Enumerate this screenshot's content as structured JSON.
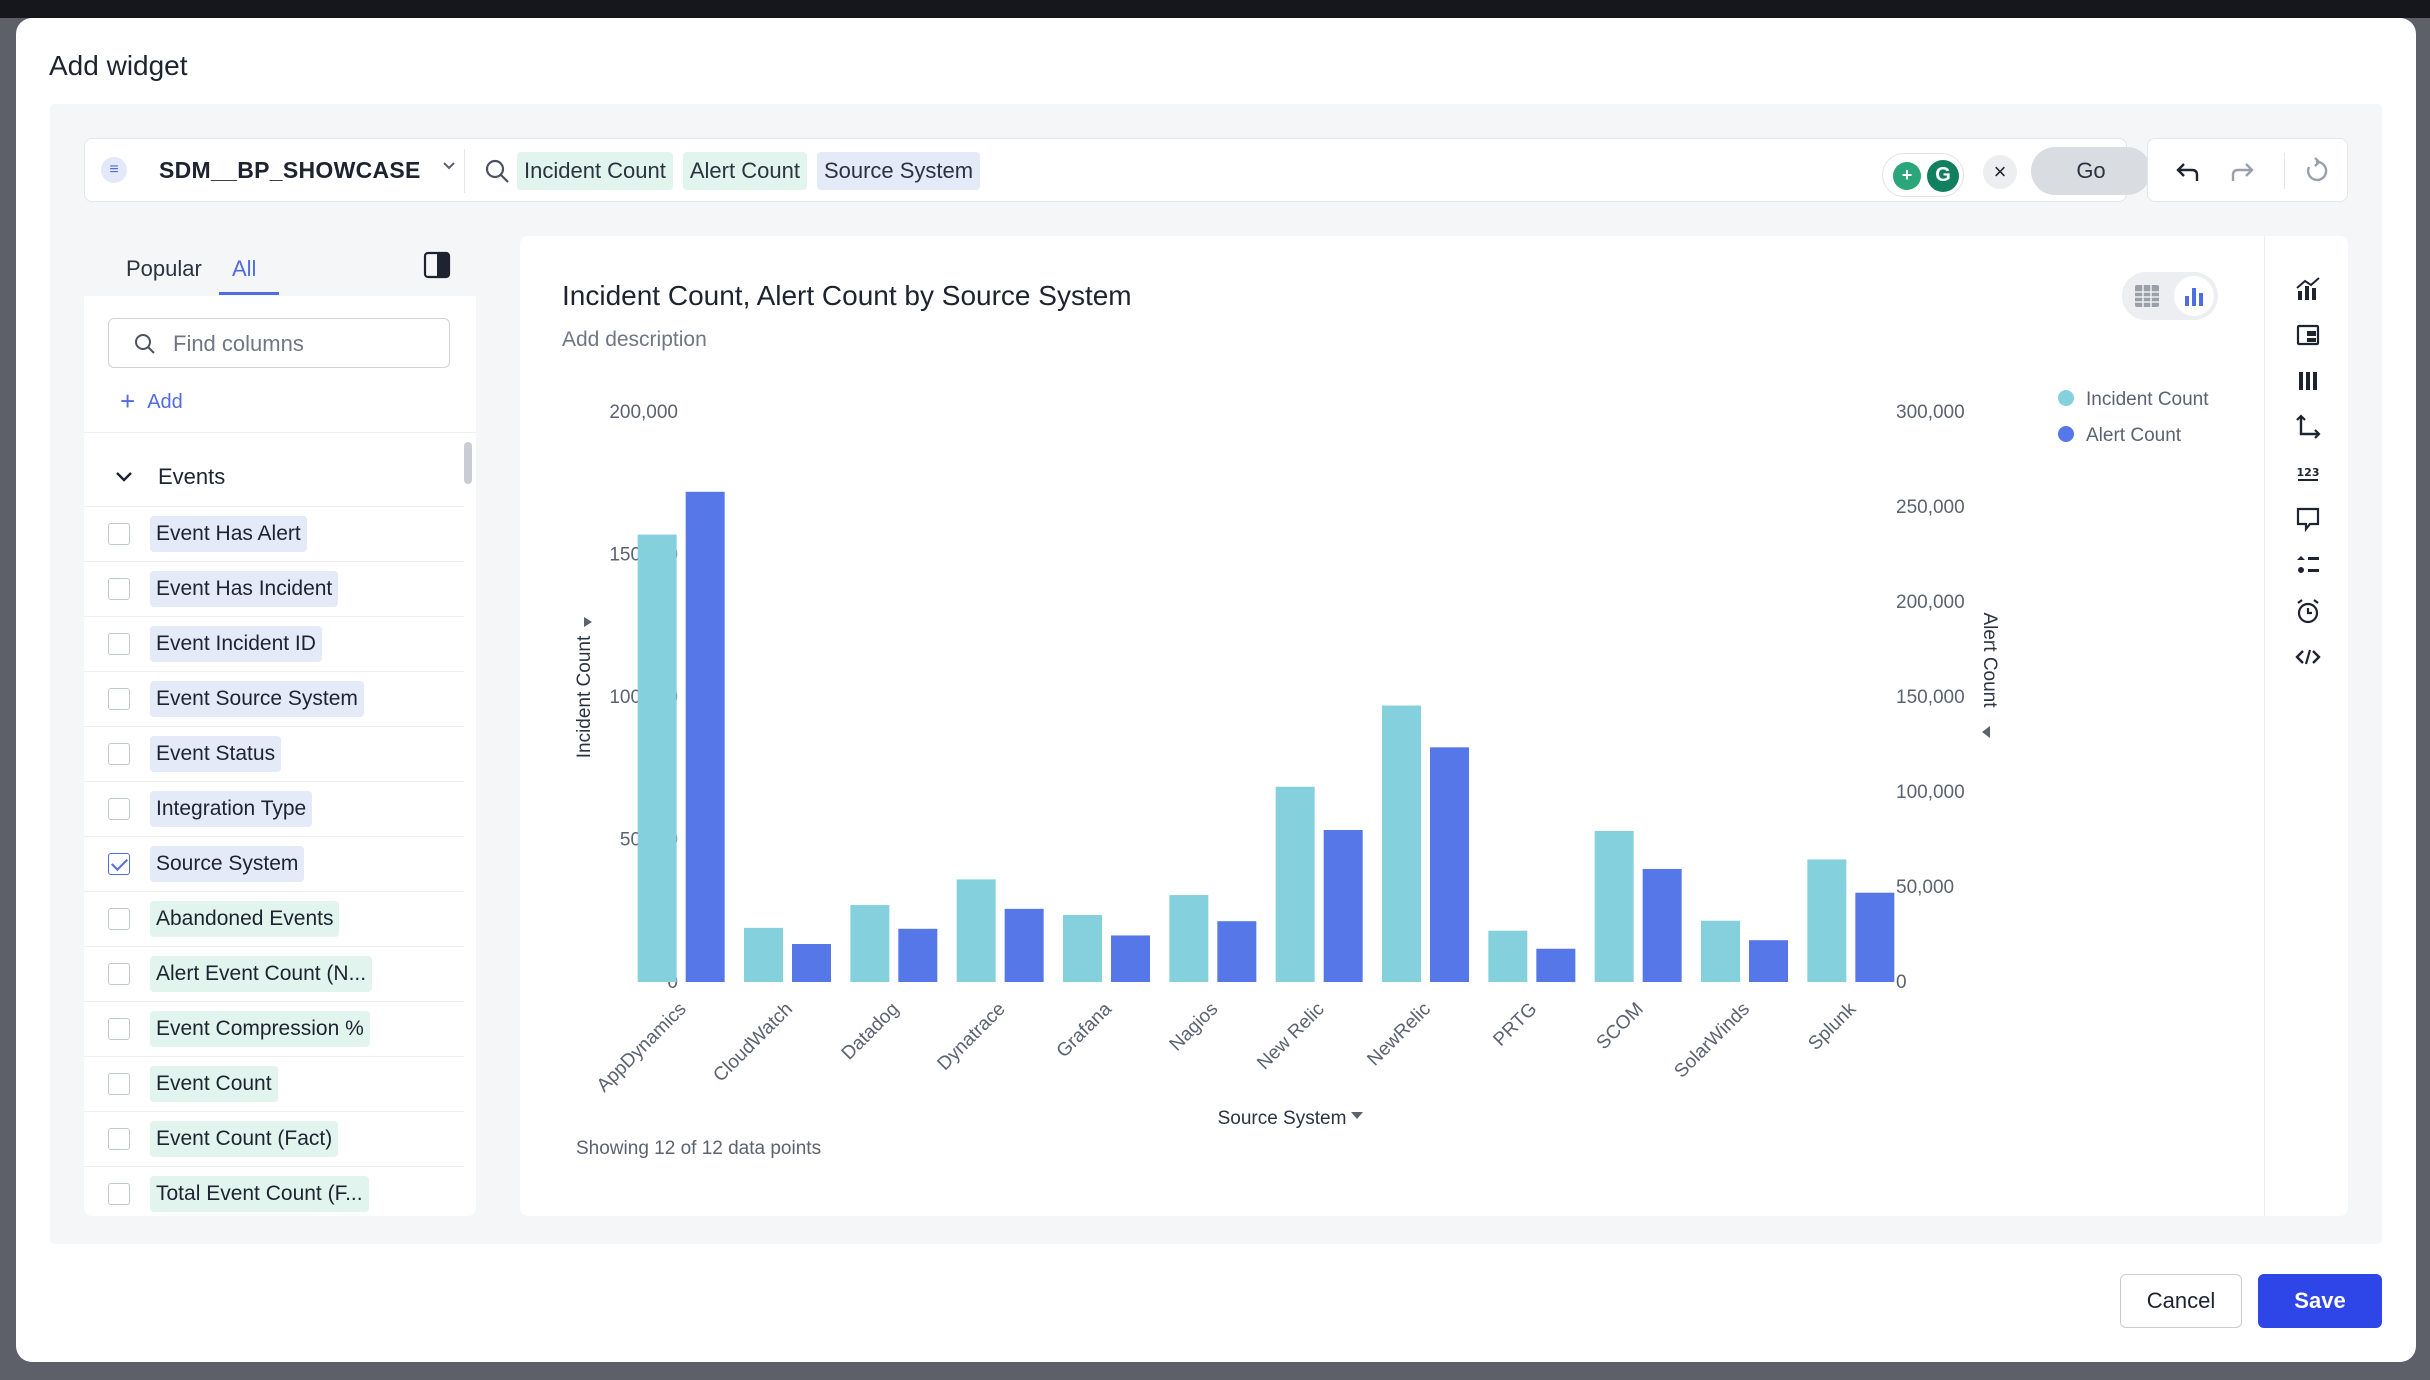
{
  "modal": {
    "title": "Add widget"
  },
  "search": {
    "worksheet": "SDM__BP_SHOWCASE",
    "tokens": [
      {
        "label": "Incident Count",
        "kind": "measure"
      },
      {
        "label": "Alert Count",
        "kind": "measure"
      },
      {
        "label": "Source System",
        "kind": "attribute"
      }
    ],
    "go_label": "Go",
    "clear_icon": "close-icon"
  },
  "left_panel": {
    "tabs": [
      "Popular",
      "All"
    ],
    "active_tab": "All",
    "find_placeholder": "Find columns",
    "add_label": "Add",
    "group_label": "Events",
    "columns": [
      {
        "label": "Event Has Alert",
        "kind": "attribute",
        "checked": false
      },
      {
        "label": "Event Has Incident",
        "kind": "attribute",
        "checked": false
      },
      {
        "label": "Event Incident ID",
        "kind": "attribute",
        "checked": false
      },
      {
        "label": "Event Source System",
        "kind": "attribute",
        "checked": false
      },
      {
        "label": "Event Status",
        "kind": "attribute",
        "checked": false
      },
      {
        "label": "Integration Type",
        "kind": "attribute",
        "checked": false
      },
      {
        "label": "Source System",
        "kind": "attribute",
        "checked": true
      },
      {
        "label": "Abandoned Events",
        "kind": "measure",
        "checked": false
      },
      {
        "label": "Alert Event Count (N...",
        "kind": "measure",
        "checked": false
      },
      {
        "label": "Event Compression %",
        "kind": "measure",
        "checked": false
      },
      {
        "label": "Event Count",
        "kind": "measure",
        "checked": false
      },
      {
        "label": "Event Count (Fact)",
        "kind": "measure",
        "checked": false
      },
      {
        "label": "Total Event Count (F...",
        "kind": "measure",
        "checked": false
      }
    ]
  },
  "chart_card": {
    "title": "Incident Count, Alert Count by Source System",
    "description_placeholder": "Add description",
    "showing_text": "Showing 12 of 12 data points"
  },
  "chart_data": {
    "type": "bar",
    "title": "Incident Count, Alert Count by Source System",
    "xlabel": "Source System",
    "categories": [
      "AppDynamics",
      "CloudWatch",
      "Datadog",
      "Dynatrace",
      "Grafana",
      "Nagios",
      "New Relic",
      "NewRelic",
      "PRTG",
      "SCOM",
      "SolarWinds",
      "Splunk"
    ],
    "series": [
      {
        "name": "Incident Count",
        "axis": "left",
        "color": "#84d0dc",
        "values": [
          157000,
          19000,
          27000,
          36000,
          23500,
          30500,
          68500,
          97000,
          18000,
          53000,
          21500,
          43000
        ]
      },
      {
        "name": "Alert Count",
        "axis": "right",
        "color": "#5577e8",
        "values": [
          258000,
          20000,
          28000,
          38500,
          24500,
          32000,
          80000,
          123500,
          17500,
          59500,
          22000,
          47000
        ]
      }
    ],
    "y_left": {
      "label": "Incident Count",
      "range": [
        0,
        200000
      ],
      "ticks": [
        "0",
        "50,000",
        "100,000",
        "150,000",
        "200,000"
      ]
    },
    "y_right": {
      "label": "Alert Count",
      "range": [
        0,
        300000
      ],
      "ticks": [
        "0",
        "50,000",
        "100,000",
        "150,000",
        "200,000",
        "250,000",
        "300,000"
      ]
    },
    "legend_position": "top-right",
    "grid": false
  },
  "footer": {
    "cancel_label": "Cancel",
    "save_label": "Save"
  },
  "colors": {
    "accent": "#4f6ce0",
    "primary_button": "#2e45e8",
    "incident_bar": "#84d0dc",
    "alert_bar": "#5577e8"
  }
}
